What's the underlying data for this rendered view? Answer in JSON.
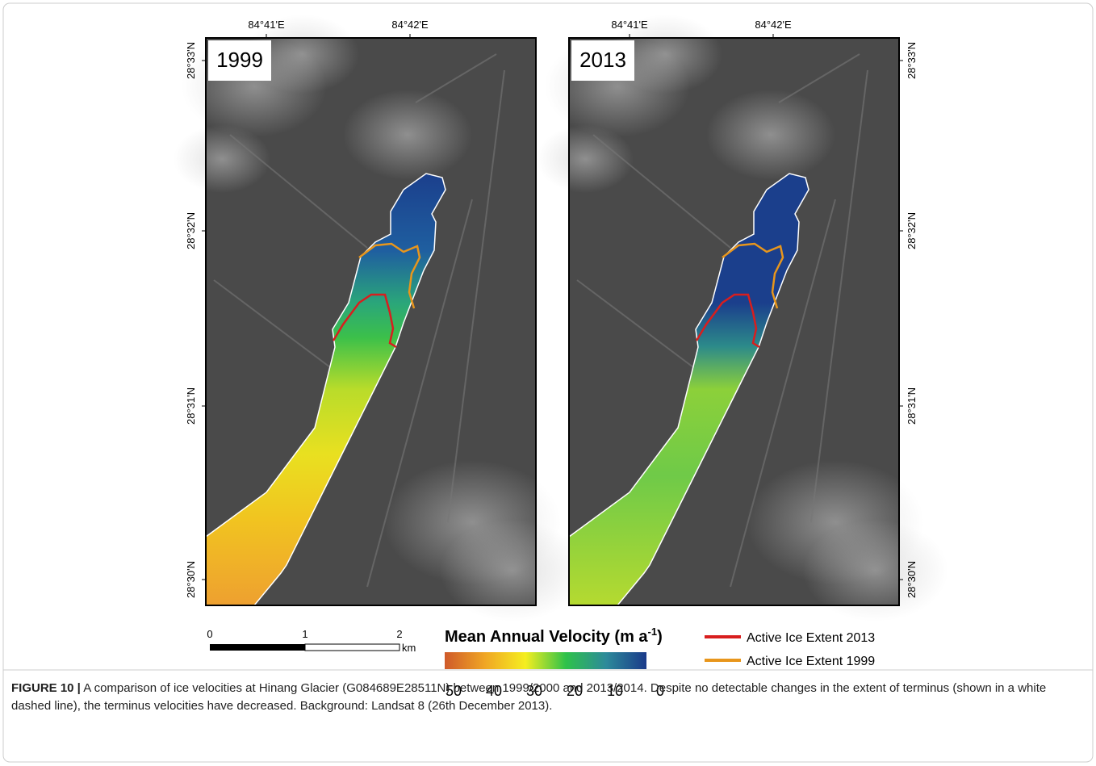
{
  "panels": [
    {
      "label": "1999",
      "top_ticks": [
        "84°41'E",
        "84°42'E"
      ],
      "side_ticks": [
        "28°33'N",
        "28°32'N",
        "28°31'N",
        "28°30'N"
      ]
    },
    {
      "label": "2013",
      "top_ticks": [
        "84°41'E",
        "84°42'E"
      ],
      "side_ticks": [
        "28°33'N",
        "28°32'N",
        "28°31'N",
        "28°30'N"
      ]
    }
  ],
  "scale_bar": {
    "ticks": [
      "0",
      "1",
      "2"
    ],
    "unit": "km"
  },
  "colorbar": {
    "title": "Mean Annual Velocity (m a",
    "title_superscript": "-1",
    "title_end": ")",
    "ticks": [
      "50",
      "40",
      "30",
      "20",
      "10",
      "0"
    ]
  },
  "legend": [
    {
      "label": "Active Ice Extent 2013",
      "color": "#d81e1e"
    },
    {
      "label": "Active Ice Extent 1999",
      "color": "#e8961c"
    }
  ],
  "caption": {
    "label": "FIGURE 10 |",
    "text": "A comparison of ice velocities at Hinang Glacier (G084689E28511N) between 1999/2000 and 2013/2014. Despite no detectable changes in the extent of terminus (shown in a white dashed line), the terminus velocities have decreased. Background: Landsat 8 (26th December 2013)."
  }
}
